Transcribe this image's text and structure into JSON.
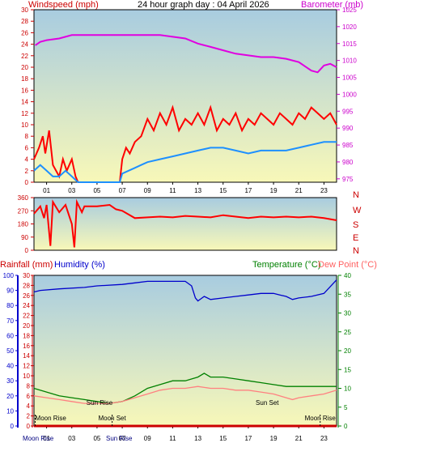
{
  "chart_data": [
    {
      "type": "line",
      "title": "24 hour graph day : 04 April 2026",
      "left_axis_label": "Windspeed (mph)",
      "right_axis_label": "Barometer (mb)",
      "x_ticks": [
        "01",
        "03",
        "05",
        "07",
        "09",
        "11",
        "13",
        "15",
        "17",
        "19",
        "21",
        "23"
      ],
      "left_ticks": [
        0,
        2,
        4,
        6,
        8,
        10,
        12,
        14,
        16,
        18,
        20,
        22,
        24,
        26,
        28,
        30
      ],
      "right_ticks": [
        975,
        980,
        985,
        990,
        995,
        1000,
        1005,
        1010,
        1015,
        1020,
        1025
      ],
      "left_ylim": [
        0,
        30
      ],
      "right_ylim": [
        974,
        1025
      ],
      "colors": {
        "barometer": "#e000e0",
        "gust": "#ff0000",
        "average": "#1e90ff",
        "left_label": "#cc0000",
        "right_label": "#cc00cc",
        "bg_top": "#a8cce0",
        "bg_bottom": "#f8f8b8"
      },
      "series": [
        {
          "name": "Barometer (mb)",
          "axis": "right",
          "points": [
            [
              0.1,
              1014.5
            ],
            [
              0.5,
              1015.5
            ],
            [
              1,
              1016
            ],
            [
              2,
              1016.5
            ],
            [
              3,
              1017.5
            ],
            [
              10,
              1017.5
            ],
            [
              11,
              1017
            ],
            [
              12,
              1016.5
            ],
            [
              13,
              1015
            ],
            [
              14,
              1014
            ],
            [
              15,
              1013
            ],
            [
              16,
              1012
            ],
            [
              17,
              1011.5
            ],
            [
              18,
              1011
            ],
            [
              19,
              1011
            ],
            [
              20,
              1010.5
            ],
            [
              21,
              1009.5
            ],
            [
              22,
              1007
            ],
            [
              22.5,
              1006.5
            ],
            [
              23,
              1008.5
            ],
            [
              23.5,
              1009
            ],
            [
              24,
              1008
            ]
          ]
        },
        {
          "axis": "left",
          "points": [
            [
              0,
              4
            ],
            [
              0.4,
              6
            ],
            [
              0.7,
              8
            ],
            [
              0.9,
              5
            ],
            [
              1.2,
              9
            ],
            [
              1.5,
              3
            ],
            [
              2,
              1
            ],
            [
              2.3,
              4
            ],
            [
              2.6,
              2
            ],
            [
              3,
              4
            ],
            [
              3.3,
              1
            ],
            [
              3.5,
              0
            ],
            [
              6.8,
              0
            ],
            [
              7,
              4
            ],
            [
              7.3,
              6
            ],
            [
              7.6,
              5
            ],
            [
              8,
              7
            ],
            [
              8.5,
              8
            ],
            [
              9,
              11
            ],
            [
              9.5,
              9
            ],
            [
              10,
              12
            ],
            [
              10.5,
              10
            ],
            [
              11,
              13
            ],
            [
              11.5,
              9
            ],
            [
              12,
              11
            ],
            [
              12.5,
              10
            ],
            [
              13,
              12
            ],
            [
              13.5,
              10
            ],
            [
              14,
              13
            ],
            [
              14.5,
              9
            ],
            [
              15,
              11
            ],
            [
              15.5,
              10
            ],
            [
              16,
              12
            ],
            [
              16.5,
              9
            ],
            [
              17,
              11
            ],
            [
              17.5,
              10
            ],
            [
              18,
              12
            ],
            [
              18.5,
              11
            ],
            [
              19,
              10
            ],
            [
              19.5,
              12
            ],
            [
              20,
              11
            ],
            [
              20.5,
              10
            ],
            [
              21,
              12
            ],
            [
              21.5,
              11
            ],
            [
              22,
              13
            ],
            [
              22.5,
              12
            ],
            [
              23,
              11
            ],
            [
              23.5,
              12
            ],
            [
              24,
              10
            ]
          ]
        },
        {
          "axis": "left",
          "points": [
            [
              0,
              2
            ],
            [
              0.5,
              3
            ],
            [
              1,
              2
            ],
            [
              1.5,
              1
            ],
            [
              2,
              1
            ],
            [
              2.5,
              2
            ],
            [
              3,
              1
            ],
            [
              3.5,
              0
            ],
            [
              6.8,
              0
            ],
            [
              7,
              1.5
            ],
            [
              7.5,
              2
            ],
            [
              8,
              2.5
            ],
            [
              8.5,
              3
            ],
            [
              9,
              3.5
            ],
            [
              10,
              4
            ],
            [
              11,
              4.5
            ],
            [
              12,
              5
            ],
            [
              13,
              5.5
            ],
            [
              14,
              6
            ],
            [
              15,
              6
            ],
            [
              16,
              5.5
            ],
            [
              17,
              5
            ],
            [
              18,
              5.5
            ],
            [
              19,
              5.5
            ],
            [
              20,
              5.5
            ],
            [
              21,
              6
            ],
            [
              22,
              6.5
            ],
            [
              23,
              7
            ],
            [
              24,
              7
            ]
          ]
        }
      ]
    },
    {
      "type": "line",
      "y_ticks": [
        0,
        90,
        180,
        270,
        360
      ],
      "ylim": [
        0,
        360
      ],
      "compass_labels": [
        "N",
        "W",
        "S",
        "E",
        "N"
      ],
      "colors": {
        "direction": "#ff0000",
        "compass": "#cc0000"
      },
      "series": [
        {
          "axis": "left",
          "points": [
            [
              0,
              250
            ],
            [
              0.5,
              300
            ],
            [
              0.8,
              220
            ],
            [
              1,
              310
            ],
            [
              1.3,
              30
            ],
            [
              1.5,
              330
            ],
            [
              2,
              260
            ],
            [
              2.5,
              310
            ],
            [
              3,
              180
            ],
            [
              3.2,
              20
            ],
            [
              3.4,
              330
            ],
            [
              3.8,
              260
            ],
            [
              4,
              300
            ],
            [
              5,
              300
            ],
            [
              6,
              310
            ],
            [
              6.5,
              280
            ],
            [
              7,
              270
            ],
            [
              8,
              220
            ],
            [
              9,
              225
            ],
            [
              10,
              230
            ],
            [
              11,
              225
            ],
            [
              12,
              235
            ],
            [
              13,
              230
            ],
            [
              14,
              225
            ],
            [
              15,
              240
            ],
            [
              16,
              230
            ],
            [
              17,
              220
            ],
            [
              18,
              230
            ],
            [
              19,
              225
            ],
            [
              20,
              230
            ],
            [
              21,
              225
            ],
            [
              22,
              230
            ],
            [
              23,
              220
            ],
            [
              24,
              205
            ]
          ]
        }
      ]
    },
    {
      "type": "line",
      "left_axis_label_rain": "Rainfall (mm)",
      "left_axis_label_humidity": "Humidity (%)",
      "right_axis_label_temp": "Temperature (°C)",
      "right_axis_label_dew": "Dew Point (°C)",
      "rain_ticks": [
        0,
        2,
        4,
        6,
        8,
        10,
        12,
        14,
        16,
        18,
        20,
        22,
        24,
        26,
        28,
        30
      ],
      "humidity_ticks": [
        0,
        10,
        20,
        30,
        40,
        50,
        60,
        70,
        80,
        90,
        100
      ],
      "temp_ticks": [
        0,
        5,
        10,
        15,
        20,
        25,
        30,
        35,
        40
      ],
      "rain_ylim": [
        0,
        30
      ],
      "temp_ylim": [
        0,
        40
      ],
      "x_ticks": [
        "01",
        "03",
        "05",
        "07",
        "09",
        "11",
        "13",
        "15",
        "17",
        "19",
        "21",
        "23"
      ],
      "annotations": [
        "Sun Rise",
        "Sun Set",
        "Moon Rise",
        "Moon Set",
        "Moon Rise"
      ],
      "bottom_labels": [
        "Moon Rise",
        "Sun Rise"
      ],
      "colors": {
        "humidity": "#0000cc",
        "temperature": "#008000",
        "dew": "#ff8080",
        "rain": "#cc0000",
        "rain_label": "#cc0000",
        "humidity_label": "#0000cc",
        "temp_label": "#008000",
        "dew_label": "#ff6060"
      },
      "series": [
        {
          "axis": "humidity",
          "points": [
            [
              0,
              89
            ],
            [
              0.5,
              90
            ],
            [
              2,
              91
            ],
            [
              4,
              92
            ],
            [
              5,
              93
            ],
            [
              7,
              94
            ],
            [
              8,
              95
            ],
            [
              9,
              96
            ],
            [
              10,
              96
            ],
            [
              11,
              96
            ],
            [
              12,
              96
            ],
            [
              12.5,
              93
            ],
            [
              12.8,
              85
            ],
            [
              13,
              83
            ],
            [
              13.5,
              86
            ],
            [
              14,
              84
            ],
            [
              15,
              85
            ],
            [
              16,
              86
            ],
            [
              17,
              87
            ],
            [
              18,
              88
            ],
            [
              19,
              88
            ],
            [
              19.5,
              87
            ],
            [
              20,
              86
            ],
            [
              20.5,
              84
            ],
            [
              21,
              85
            ],
            [
              22,
              86
            ],
            [
              23,
              88
            ],
            [
              24,
              97
            ]
          ]
        },
        {
          "axis": "temp",
          "points": [
            [
              0,
              10
            ],
            [
              1,
              9
            ],
            [
              2,
              8
            ],
            [
              3,
              7.5
            ],
            [
              4,
              7
            ],
            [
              5,
              6.5
            ],
            [
              6,
              6
            ],
            [
              7,
              6.5
            ],
            [
              8,
              8
            ],
            [
              9,
              10
            ],
            [
              10,
              11
            ],
            [
              11,
              12
            ],
            [
              12,
              12
            ],
            [
              13,
              13
            ],
            [
              13.5,
              14
            ],
            [
              14,
              13
            ],
            [
              15,
              13
            ],
            [
              16,
              12.5
            ],
            [
              17,
              12
            ],
            [
              18,
              11.5
            ],
            [
              19,
              11
            ],
            [
              20,
              10.5
            ],
            [
              21,
              10.5
            ],
            [
              22,
              10.5
            ],
            [
              23,
              10.5
            ],
            [
              24,
              10.5
            ]
          ]
        },
        {
          "axis": "temp",
          "points": [
            [
              0,
              8
            ],
            [
              1,
              7.5
            ],
            [
              2,
              7
            ],
            [
              3,
              6.5
            ],
            [
              4,
              6
            ],
            [
              5,
              6
            ],
            [
              6,
              6
            ],
            [
              7,
              6.5
            ],
            [
              8,
              7.5
            ],
            [
              9,
              8.5
            ],
            [
              10,
              9.5
            ],
            [
              11,
              10
            ],
            [
              12,
              10
            ],
            [
              13,
              10.5
            ],
            [
              14,
              10
            ],
            [
              15,
              10
            ],
            [
              16,
              9.5
            ],
            [
              17,
              9.5
            ],
            [
              18,
              9
            ],
            [
              19,
              8.5
            ],
            [
              20,
              7.5
            ],
            [
              20.5,
              7
            ],
            [
              21,
              7.5
            ],
            [
              22,
              8
            ],
            [
              23,
              8.5
            ],
            [
              24,
              9.5
            ]
          ]
        },
        {
          "axis": "rain",
          "points": [
            [
              0,
              0
            ],
            [
              24,
              0
            ]
          ]
        }
      ],
      "markers": {
        "sunrise_hour": 5.2,
        "sunset_hour": 18.5,
        "moonrise_hour": 0.1,
        "moonset_hour": 6.2,
        "moonrise2_hour": 22.7
      }
    }
  ]
}
